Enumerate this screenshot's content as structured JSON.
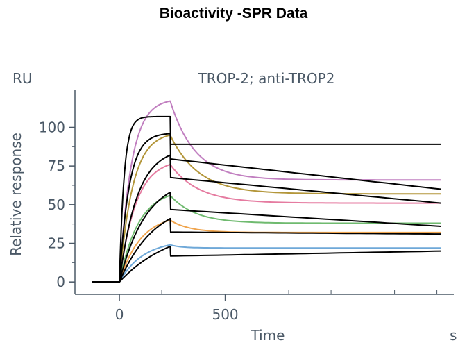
{
  "page_title": "Bioactivity -SPR Data",
  "chart_data": {
    "type": "line",
    "title": "TROP-2; anti-TROP2",
    "xlabel": "Time",
    "ylabel": "Relative response",
    "x_unit": "s",
    "y_unit": "RU",
    "xlim": [
      -210,
      1580
    ],
    "ylim": [
      -8,
      124
    ],
    "x_ticks": [
      0,
      500
    ],
    "x_minor_ticks": [
      -300,
      200,
      800,
      1000,
      1300,
      1500
    ],
    "y_ticks": [
      0,
      25,
      50,
      75,
      100
    ],
    "grid": false,
    "legend": "none",
    "t_inj_start": 0,
    "t_inj_end": 240,
    "t_end": 1520,
    "t_baseline_start": -130,
    "measured": [
      {
        "color": "#c17fc0",
        "peak": 117,
        "end": 66
      },
      {
        "color": "#b3963a",
        "peak": 95,
        "end": 57
      },
      {
        "color": "#e57ba0",
        "peak": 76,
        "end": 51
      },
      {
        "color": "#6fba6f",
        "peak": 56,
        "end": 38
      },
      {
        "color": "#f0a54e",
        "peak": 40,
        "end": 32
      },
      {
        "color": "#6ea8d8",
        "peak": 24,
        "end": 22
      }
    ],
    "fits": [
      {
        "color": "#000000",
        "peak": 107,
        "end": null
      },
      {
        "color": "#000000",
        "peak": 96,
        "end": 60
      },
      {
        "color": "#000000",
        "peak": 82,
        "end": 51
      },
      {
        "color": "#000000",
        "peak": 58,
        "end": 36
      },
      {
        "color": "#000000",
        "peak": 41,
        "end": 31
      },
      {
        "color": "#000000",
        "peak": 23,
        "end": 20
      }
    ]
  }
}
